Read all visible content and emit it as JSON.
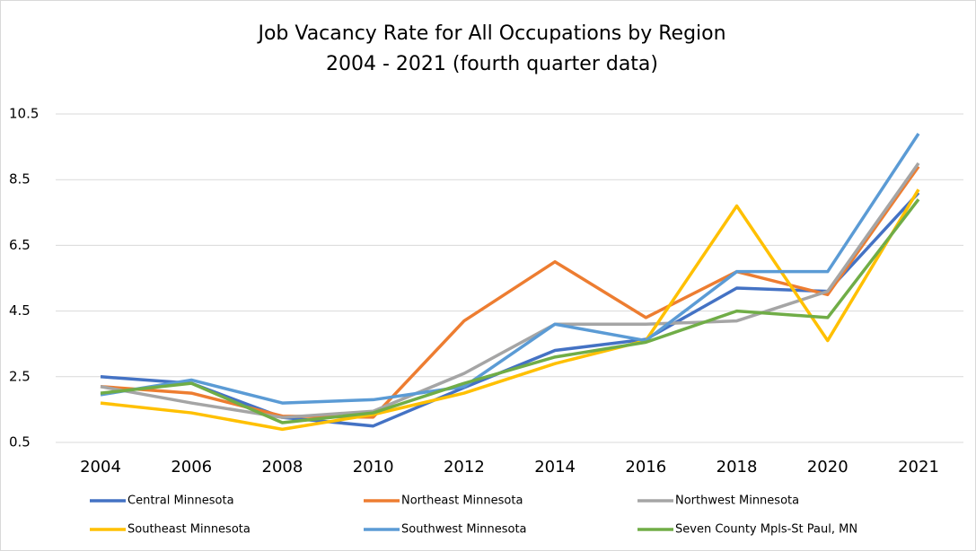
{
  "chart_data": {
    "type": "line",
    "title": "Job Vacancy Rate for All Occupations by Region",
    "subtitle": "2004 - 2021 (fourth quarter data)",
    "categories": [
      "2004",
      "2006",
      "2008",
      "2010",
      "2012",
      "2014",
      "2016",
      "2018",
      "2020",
      "2021"
    ],
    "series": [
      {
        "name": "Central Minnesota",
        "color": "#4472c4",
        "values": [
          2.5,
          2.3,
          1.26,
          1.0,
          2.17,
          3.3,
          3.64,
          5.2,
          5.1,
          8.1
        ]
      },
      {
        "name": "Northeast Minnesota",
        "color": "#ed7d31",
        "values": [
          2.2,
          2.0,
          1.3,
          1.27,
          4.2,
          6.0,
          4.3,
          5.7,
          5.0,
          8.9
        ]
      },
      {
        "name": "Northwest Minnesota",
        "color": "#a5a5a5",
        "values": [
          2.2,
          1.7,
          1.26,
          1.45,
          2.6,
          4.1,
          4.1,
          4.2,
          5.1,
          9.0
        ]
      },
      {
        "name": "Southeast Minnesota",
        "color": "#ffc000",
        "values": [
          1.7,
          1.4,
          0.9,
          1.35,
          2.0,
          2.9,
          3.6,
          7.7,
          3.6,
          8.2
        ]
      },
      {
        "name": "Southwest Minnesota",
        "color": "#5b9bd5",
        "values": [
          1.95,
          2.4,
          1.7,
          1.8,
          2.2,
          4.1,
          3.6,
          5.7,
          5.7,
          9.9
        ]
      },
      {
        "name": "Seven County Mpls-St Paul, MN",
        "color": "#70ad47",
        "values": [
          2.0,
          2.3,
          1.1,
          1.4,
          2.3,
          3.1,
          3.55,
          4.5,
          4.3,
          7.9
        ]
      }
    ],
    "ylim": [
      0.5,
      10.5
    ],
    "yticks": [
      0.5,
      2.5,
      4.5,
      6.5,
      8.5,
      10.5
    ],
    "grid": true,
    "legend": "bottom"
  }
}
